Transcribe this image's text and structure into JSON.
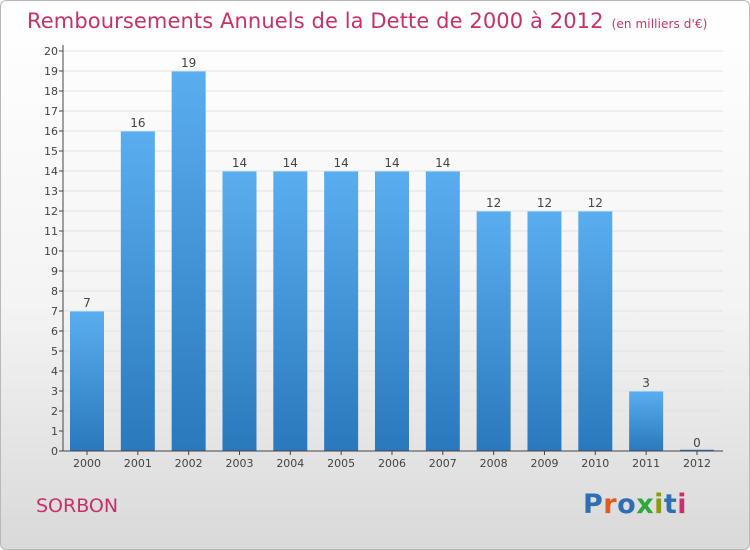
{
  "title": "Remboursements Annuels de la Dette de 2000 à 2012",
  "unit": "(en milliers d'€)",
  "commune": "SORBON",
  "brand": {
    "text": "Proxiti",
    "letter_colors": [
      "#2e6fb3",
      "#e35b1b",
      "#2e6fb3",
      "#2ea83a",
      "#8a9a12",
      "#2e6fb3",
      "#c8306a"
    ]
  },
  "colors": {
    "title": "#c8306a",
    "bar_top": "#5aaef0",
    "bar_bottom": "#2a78bd",
    "axis": "#444444",
    "grid": "#e2e2e2"
  },
  "chart_data": {
    "type": "bar",
    "categories": [
      "2000",
      "2001",
      "2002",
      "2003",
      "2004",
      "2005",
      "2006",
      "2007",
      "2008",
      "2009",
      "2010",
      "2011",
      "2012"
    ],
    "values": [
      7,
      16,
      19,
      14,
      14,
      14,
      14,
      14,
      12,
      12,
      12,
      3,
      0
    ],
    "data_labels": [
      "7",
      "16",
      "19",
      "14",
      "14",
      "14",
      "14",
      "14",
      "12",
      "12",
      "12",
      "3",
      "0"
    ],
    "yticks": [
      "0",
      "1",
      "2",
      "3",
      "4",
      "5",
      "6",
      "7",
      "8",
      "9",
      "10",
      "11",
      "12",
      "13",
      "14",
      "15",
      "16",
      "17",
      "18",
      "19",
      "20"
    ],
    "ylim": [
      0,
      20
    ],
    "grid": true,
    "legend": "none"
  }
}
